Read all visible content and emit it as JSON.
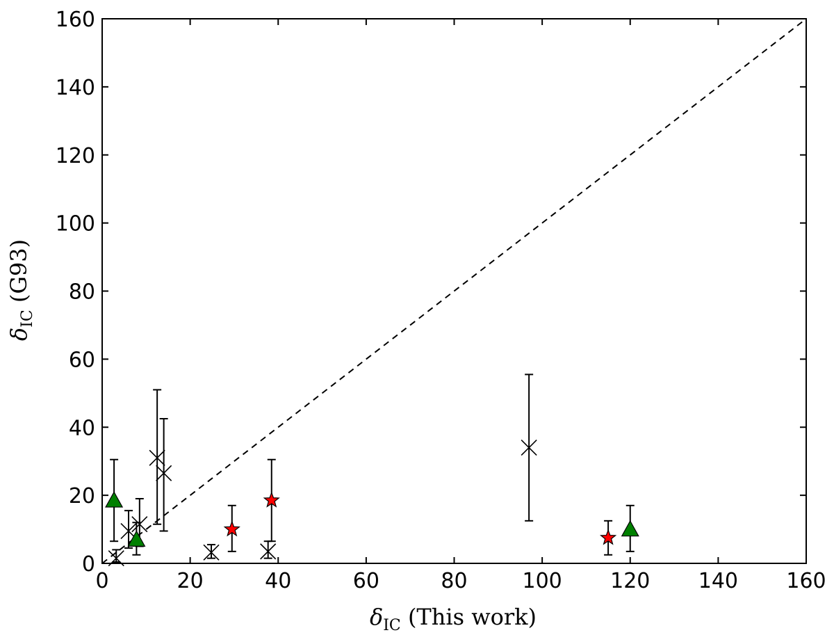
{
  "chart_data": {
    "type": "scatter",
    "xlabel": {
      "symbol": "δ",
      "sub": "IC",
      "text": " (This work)"
    },
    "ylabel": {
      "symbol": "δ",
      "sub": "IC",
      "text": " (G93)"
    },
    "xlim": [
      0,
      160
    ],
    "ylim": [
      0,
      160
    ],
    "xticks": [
      "0",
      "20",
      "40",
      "60",
      "80",
      "100",
      "120",
      "140",
      "160"
    ],
    "yticks": [
      "0",
      "20",
      "40",
      "60",
      "80",
      "100",
      "120",
      "140",
      "160"
    ],
    "grid": false,
    "reference_line": {
      "style": "dashed",
      "from": [
        0,
        0
      ],
      "to": [
        160,
        160
      ]
    },
    "series": [
      {
        "marker": "x",
        "color": "#000000",
        "points": [
          {
            "x": 3.2,
            "y": 1.5,
            "yerr_low": 0.4,
            "yerr_high": 4.0
          },
          {
            "x": 6.0,
            "y": 9.5,
            "yerr_low": 4.5,
            "yerr_high": 15.5
          },
          {
            "x": 8.5,
            "y": 11.5,
            "yerr_low": 5.0,
            "yerr_high": 19.0
          },
          {
            "x": 12.5,
            "y": 31.0,
            "yerr_low": 11.5,
            "yerr_high": 51.0
          },
          {
            "x": 14.0,
            "y": 26.5,
            "yerr_low": 9.5,
            "yerr_high": 42.5
          },
          {
            "x": 24.8,
            "y": 3.2,
            "yerr_low": 1.5,
            "yerr_high": 5.5
          },
          {
            "x": 37.7,
            "y": 3.5,
            "yerr_low": 1.5,
            "yerr_high": 6.5
          },
          {
            "x": 97.0,
            "y": 34.0,
            "yerr_low": 12.5,
            "yerr_high": 55.5
          }
        ]
      },
      {
        "marker": "star",
        "color": "#ff0000",
        "points": [
          {
            "x": 29.5,
            "y": 10.0,
            "yerr_low": 3.5,
            "yerr_high": 17.0
          },
          {
            "x": 38.5,
            "y": 18.5,
            "yerr_low": 6.5,
            "yerr_high": 30.5
          },
          {
            "x": 115.0,
            "y": 7.5,
            "yerr_low": 2.5,
            "yerr_high": 12.5
          }
        ]
      },
      {
        "marker": "triangle",
        "color": "#008000",
        "points": [
          {
            "x": 2.7,
            "y": 18.5,
            "yerr_low": 6.5,
            "yerr_high": 30.5
          },
          {
            "x": 7.8,
            "y": 7.0,
            "yerr_low": 2.5,
            "yerr_high": 12.0
          },
          {
            "x": 120.0,
            "y": 10.0,
            "yerr_low": 3.5,
            "yerr_high": 17.0
          }
        ]
      }
    ]
  }
}
